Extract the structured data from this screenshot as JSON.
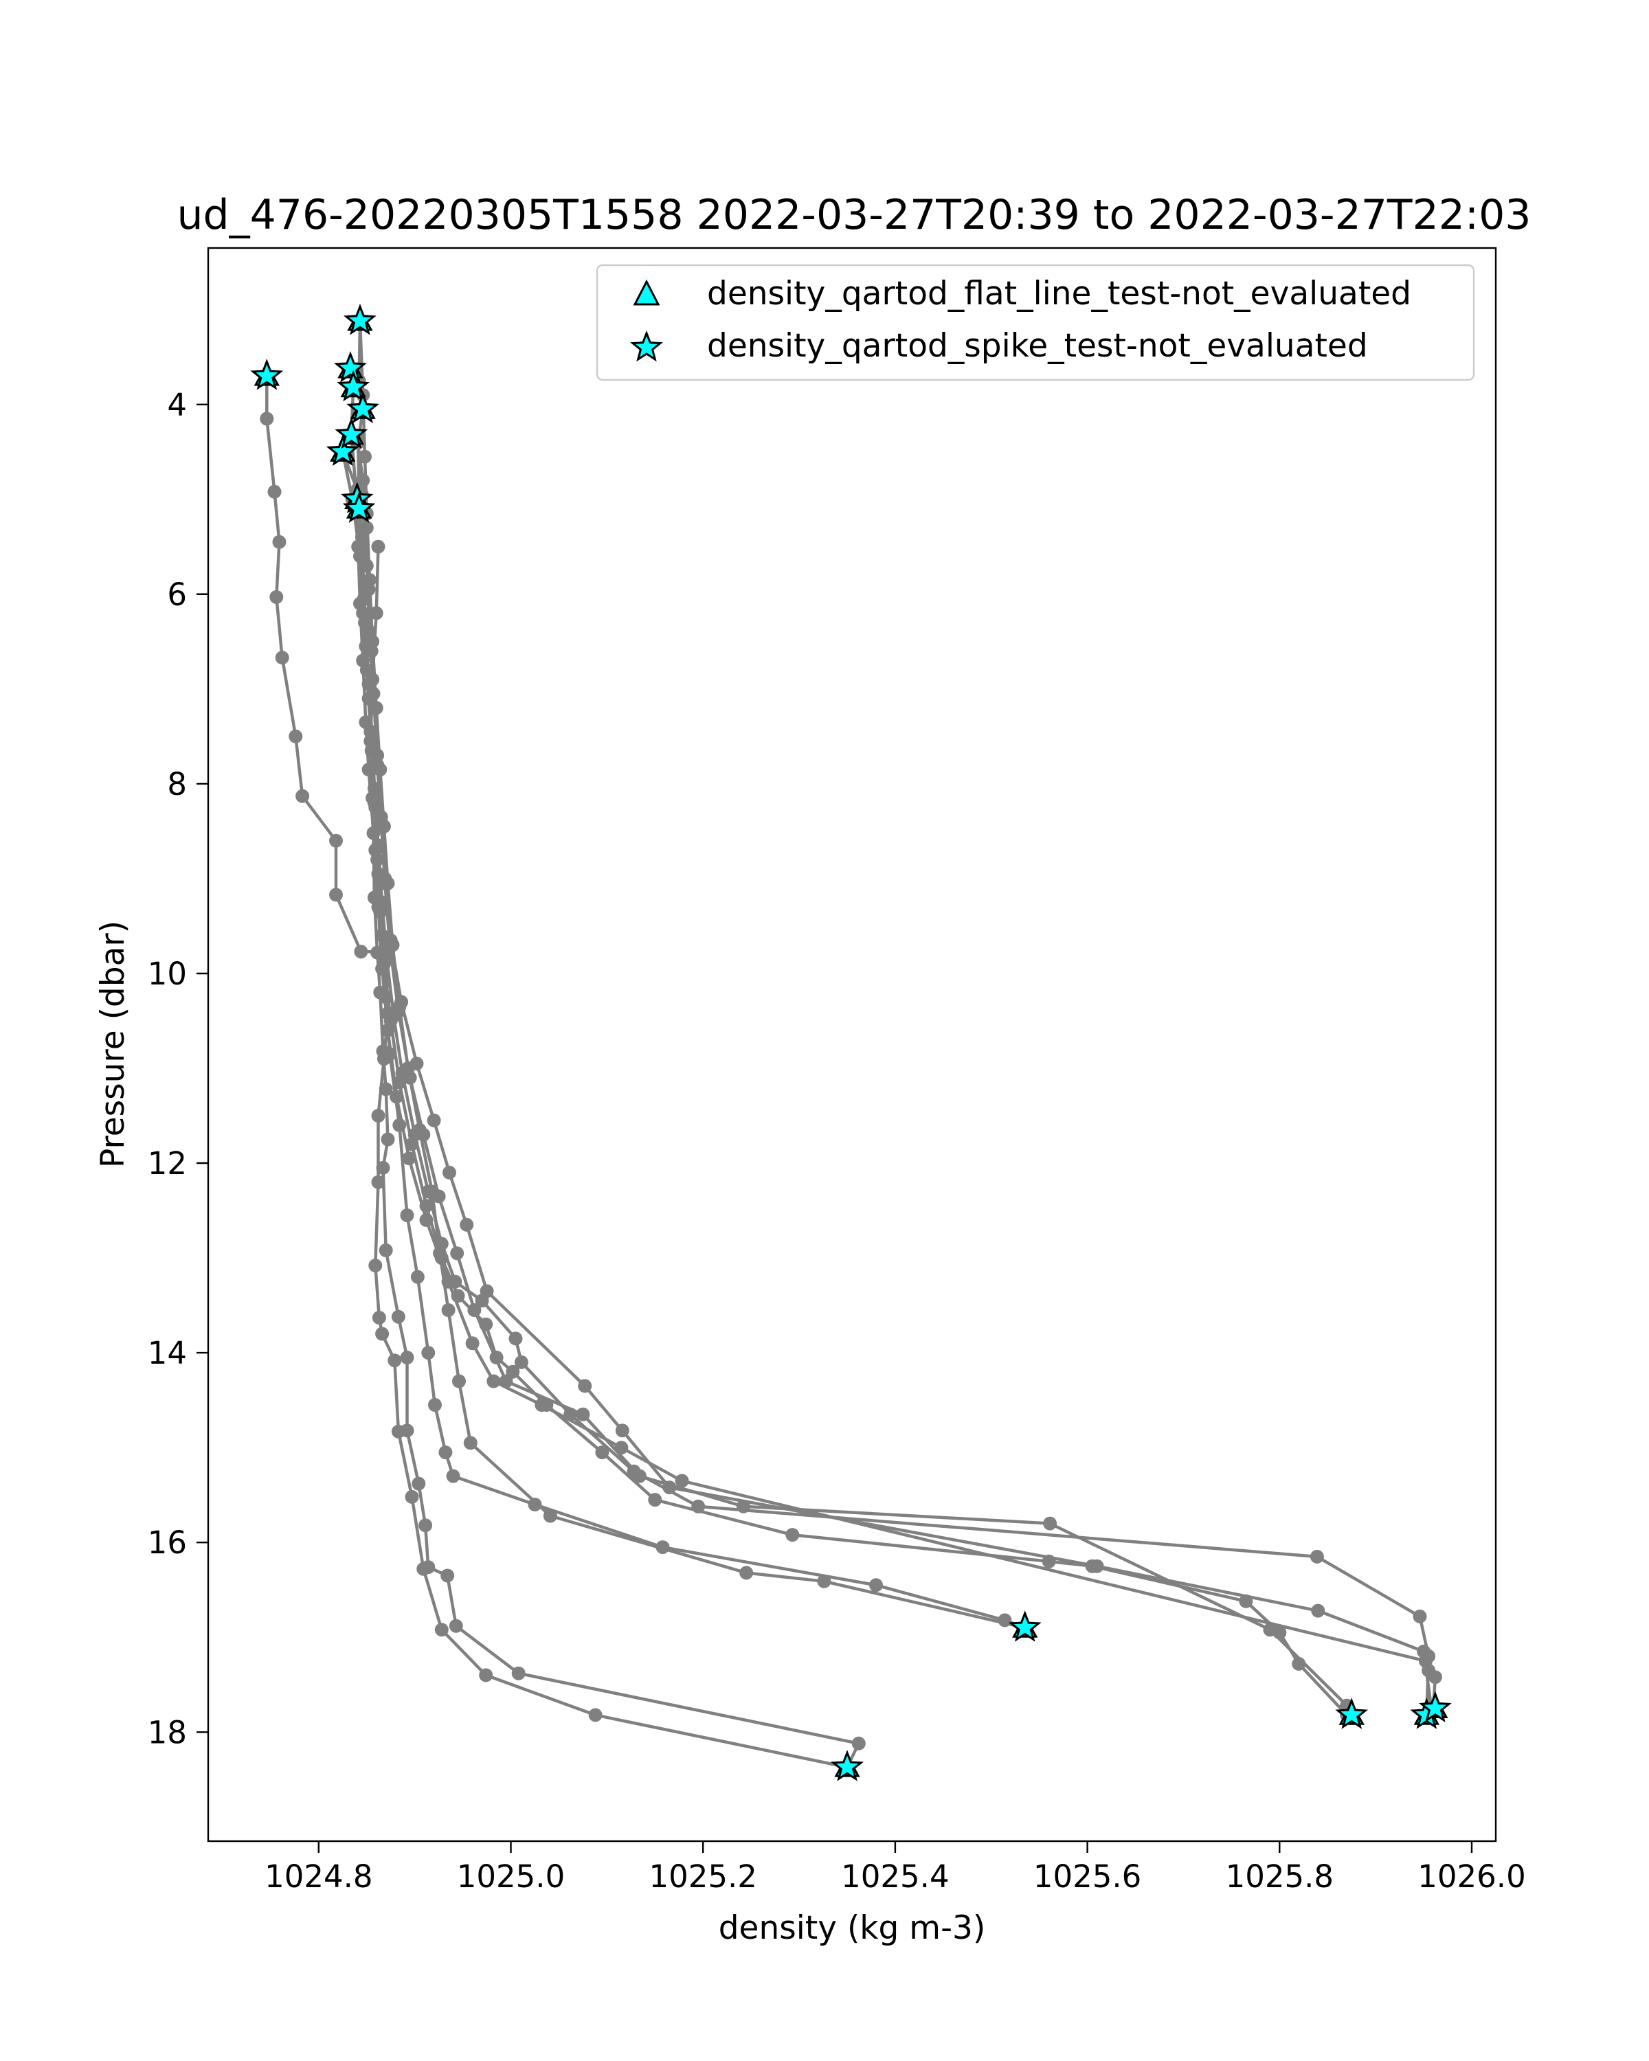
{
  "chart_data": {
    "type": "scatter",
    "title": "ud_476-20220305T1558 2022-03-27T20:39 to 2022-03-27T22:03",
    "xlabel": "density (kg m-3)",
    "ylabel": "Pressure (dbar)",
    "xlim": [
      1024.685,
      1026.025
    ],
    "ylim": [
      19.15,
      2.35
    ],
    "y_inverted": true,
    "x_ticks": [
      1024.8,
      1025.0,
      1025.2,
      1025.4,
      1025.6,
      1025.8,
      1026.0
    ],
    "x_tick_labels": [
      "1024.8",
      "1025.0",
      "1025.2",
      "1025.4",
      "1025.6",
      "1025.8",
      "1026.0"
    ],
    "y_ticks": [
      4,
      6,
      8,
      10,
      12,
      14,
      16,
      18
    ],
    "y_tick_labels": [
      "4",
      "6",
      "8",
      "10",
      "12",
      "14",
      "16",
      "18"
    ],
    "grid": false,
    "legend_position": "top-right",
    "colors": {
      "profile_line": "#808080",
      "flag_fill": "#00ffff",
      "flag_edge": "#000000"
    },
    "legend": [
      {
        "label": "density_qartod_flat_line_test-not_evaluated",
        "marker": "triangle"
      },
      {
        "label": "density_qartod_spike_test-not_evaluated",
        "marker": "star"
      }
    ],
    "series": [
      {
        "points": [
          [
            1024.746,
            3.7
          ],
          [
            1024.746,
            4.15
          ],
          [
            1024.754,
            4.92
          ],
          [
            1024.759,
            5.45
          ],
          [
            1024.756,
            6.03
          ],
          [
            1024.762,
            6.67
          ],
          [
            1024.776,
            7.5
          ],
          [
            1024.783,
            8.13
          ],
          [
            1024.818,
            8.6
          ],
          [
            1024.818,
            9.17
          ],
          [
            1024.844,
            9.77
          ],
          [
            1024.87,
            9.77
          ],
          [
            1024.872,
            10.42
          ],
          [
            1024.868,
            10.9
          ],
          [
            1024.862,
            11.5
          ],
          [
            1024.862,
            12.2
          ],
          [
            1024.859,
            13.08
          ],
          [
            1024.863,
            13.63
          ],
          [
            1024.866,
            13.8
          ],
          [
            1024.879,
            14.08
          ],
          [
            1024.883,
            14.83
          ],
          [
            1024.897,
            15.52
          ],
          [
            1024.909,
            16.28
          ],
          [
            1024.928,
            16.92
          ],
          [
            1024.974,
            17.4
          ],
          [
            1025.088,
            17.82
          ],
          [
            1025.35,
            18.37
          ]
        ]
      },
      {
        "points": [
          [
            1024.833,
            3.62
          ],
          [
            1024.836,
            3.82
          ],
          [
            1024.834,
            4.32
          ],
          [
            1024.84,
            5.05
          ],
          [
            1024.841,
            5.5
          ],
          [
            1024.843,
            6.1
          ],
          [
            1024.846,
            6.7
          ],
          [
            1024.849,
            7.35
          ],
          [
            1024.852,
            7.85
          ],
          [
            1024.857,
            8.52
          ],
          [
            1024.858,
            9.2
          ],
          [
            1024.861,
            9.78
          ],
          [
            1024.864,
            10.2
          ],
          [
            1024.867,
            10.82
          ],
          [
            1024.87,
            11.22
          ],
          [
            1024.872,
            11.75
          ],
          [
            1024.867,
            12.05
          ],
          [
            1024.87,
            12.92
          ],
          [
            1024.883,
            13.62
          ],
          [
            1024.892,
            14.05
          ],
          [
            1024.892,
            14.82
          ],
          [
            1024.904,
            15.38
          ],
          [
            1024.911,
            15.82
          ],
          [
            1024.914,
            16.26
          ],
          [
            1024.934,
            16.35
          ],
          [
            1024.943,
            16.88
          ],
          [
            1025.008,
            17.38
          ],
          [
            1025.362,
            18.12
          ],
          [
            1025.35,
            18.37
          ]
        ]
      },
      {
        "points": [
          [
            1024.843,
            3.12
          ],
          [
            1024.842,
            3.75
          ],
          [
            1024.846,
            4.05
          ],
          [
            1024.841,
            4.4
          ],
          [
            1024.842,
            5.05
          ],
          [
            1024.845,
            5.4
          ],
          [
            1024.848,
            6.3
          ],
          [
            1024.852,
            6.95
          ],
          [
            1024.856,
            7.55
          ],
          [
            1024.859,
            8.25
          ],
          [
            1024.862,
            8.95
          ],
          [
            1024.866,
            9.6
          ],
          [
            1024.87,
            10.25
          ],
          [
            1024.874,
            10.85
          ],
          [
            1024.884,
            11.6
          ],
          [
            1024.892,
            12.55
          ],
          [
            1024.903,
            13.2
          ],
          [
            1024.914,
            14.0
          ],
          [
            1024.921,
            14.55
          ],
          [
            1024.932,
            15.05
          ],
          [
            1024.94,
            15.3
          ],
          [
            1025.025,
            15.6
          ],
          [
            1025.158,
            16.05
          ],
          [
            1025.38,
            16.45
          ],
          [
            1025.514,
            16.82
          ],
          [
            1025.535,
            16.9
          ]
        ]
      },
      {
        "points": [
          [
            1024.843,
            3.12
          ],
          [
            1024.846,
            3.9
          ],
          [
            1024.848,
            4.55
          ],
          [
            1024.85,
            5.15
          ],
          [
            1024.853,
            5.85
          ],
          [
            1024.856,
            6.5
          ],
          [
            1024.86,
            7.2
          ],
          [
            1024.864,
            7.85
          ],
          [
            1024.868,
            8.45
          ],
          [
            1024.872,
            9.05
          ],
          [
            1024.877,
            9.7
          ],
          [
            1024.884,
            10.35
          ],
          [
            1024.893,
            11.0
          ],
          [
            1024.905,
            11.65
          ],
          [
            1024.918,
            12.3
          ],
          [
            1024.926,
            12.95
          ],
          [
            1024.935,
            13.55
          ],
          [
            1024.946,
            14.3
          ],
          [
            1024.958,
            14.95
          ],
          [
            1025.041,
            15.72
          ],
          [
            1025.245,
            16.32
          ],
          [
            1025.326,
            16.41
          ],
          [
            1025.535,
            16.9
          ]
        ]
      },
      {
        "points": [
          [
            1024.825,
            4.5
          ],
          [
            1024.84,
            4.9
          ],
          [
            1024.845,
            5.5
          ],
          [
            1024.847,
            6.05
          ],
          [
            1024.849,
            6.55
          ],
          [
            1024.852,
            7.1
          ],
          [
            1024.855,
            7.65
          ],
          [
            1024.858,
            8.2
          ],
          [
            1024.861,
            8.8
          ],
          [
            1024.864,
            9.35
          ],
          [
            1024.868,
            9.9
          ],
          [
            1024.875,
            10.5
          ],
          [
            1024.884,
            11.15
          ],
          [
            1024.897,
            11.8
          ],
          [
            1024.912,
            12.45
          ],
          [
            1024.928,
            13.0
          ],
          [
            1024.945,
            13.4
          ],
          [
            1024.974,
            13.7
          ],
          [
            1024.985,
            14.05
          ],
          [
            1025.002,
            14.2
          ],
          [
            1025.037,
            14.55
          ],
          [
            1025.095,
            15.05
          ],
          [
            1025.15,
            15.55
          ],
          [
            1025.293,
            15.92
          ],
          [
            1025.56,
            16.2
          ],
          [
            1025.605,
            16.25
          ],
          [
            1025.765,
            16.62
          ],
          [
            1025.8,
            16.95
          ],
          [
            1025.82,
            17.28
          ],
          [
            1025.87,
            17.82
          ],
          [
            1025.875,
            17.82
          ]
        ]
      },
      {
        "points": [
          [
            1024.825,
            4.5
          ],
          [
            1024.835,
            5.0
          ],
          [
            1024.843,
            5.6
          ],
          [
            1024.846,
            6.2
          ],
          [
            1024.85,
            6.8
          ],
          [
            1024.854,
            7.45
          ],
          [
            1024.858,
            8.05
          ],
          [
            1024.862,
            8.65
          ],
          [
            1024.866,
            9.25
          ],
          [
            1024.871,
            9.85
          ],
          [
            1024.878,
            10.45
          ],
          [
            1024.887,
            11.05
          ],
          [
            1024.9,
            11.7
          ],
          [
            1024.914,
            12.3
          ],
          [
            1024.928,
            12.85
          ],
          [
            1024.942,
            13.25
          ],
          [
            1024.97,
            13.45
          ],
          [
            1025.005,
            13.85
          ],
          [
            1025.011,
            14.1
          ],
          [
            1025.062,
            14.65
          ],
          [
            1025.128,
            15.25
          ],
          [
            1025.195,
            15.62
          ],
          [
            1025.839,
            16.15
          ],
          [
            1025.946,
            16.78
          ],
          [
            1025.955,
            17.2
          ],
          [
            1025.953,
            17.85
          ]
        ]
      },
      {
        "points": [
          [
            1024.84,
            4.35
          ],
          [
            1024.846,
            4.8
          ],
          [
            1024.85,
            5.3
          ],
          [
            1024.852,
            5.95
          ],
          [
            1024.855,
            6.6
          ],
          [
            1024.858,
            7.2
          ],
          [
            1024.861,
            7.8
          ],
          [
            1024.865,
            8.4
          ],
          [
            1024.869,
            9.05
          ],
          [
            1024.874,
            9.7
          ],
          [
            1024.883,
            10.4
          ],
          [
            1024.895,
            11.1
          ],
          [
            1024.909,
            11.7
          ],
          [
            1024.925,
            12.35
          ],
          [
            1024.944,
            12.95
          ],
          [
            1024.962,
            13.55
          ],
          [
            1024.995,
            14.3
          ],
          [
            1025.075,
            14.65
          ],
          [
            1025.134,
            15.3
          ],
          [
            1025.242,
            15.62
          ],
          [
            1025.561,
            15.8
          ],
          [
            1025.79,
            16.92
          ],
          [
            1025.87,
            17.72
          ],
          [
            1025.875,
            17.82
          ]
        ]
      },
      {
        "points": [
          [
            1024.84,
            4.35
          ],
          [
            1024.845,
            4.95
          ],
          [
            1024.85,
            5.7
          ],
          [
            1024.853,
            6.4
          ],
          [
            1024.857,
            7.05
          ],
          [
            1024.861,
            7.7
          ],
          [
            1024.865,
            8.35
          ],
          [
            1024.869,
            9.0
          ],
          [
            1024.875,
            9.65
          ],
          [
            1024.886,
            10.3
          ],
          [
            1024.902,
            10.95
          ],
          [
            1024.92,
            11.55
          ],
          [
            1024.936,
            12.1
          ],
          [
            1024.954,
            12.65
          ],
          [
            1024.975,
            13.35
          ],
          [
            1025.077,
            14.35
          ],
          [
            1025.116,
            14.82
          ],
          [
            1025.165,
            15.42
          ],
          [
            1025.61,
            16.25
          ],
          [
            1025.84,
            16.72
          ],
          [
            1025.95,
            17.15
          ],
          [
            1025.958,
            17.75
          ],
          [
            1025.96,
            17.75
          ]
        ]
      },
      {
        "points": [
          [
            1024.862,
            5.5
          ],
          [
            1024.86,
            6.2
          ],
          [
            1024.856,
            6.9
          ],
          [
            1024.854,
            7.55
          ],
          [
            1024.856,
            8.15
          ],
          [
            1024.859,
            8.7
          ],
          [
            1024.862,
            9.3
          ],
          [
            1024.866,
            9.95
          ],
          [
            1024.872,
            10.6
          ],
          [
            1024.881,
            11.3
          ],
          [
            1024.894,
            11.95
          ],
          [
            1024.912,
            12.6
          ],
          [
            1024.935,
            13.25
          ],
          [
            1024.96,
            13.9
          ],
          [
            1024.982,
            14.3
          ],
          [
            1025.032,
            14.55
          ],
          [
            1025.115,
            15.0
          ],
          [
            1025.178,
            15.35
          ],
          [
            1025.952,
            17.25
          ],
          [
            1025.955,
            17.35
          ],
          [
            1025.962,
            17.42
          ],
          [
            1025.96,
            17.75
          ]
        ]
      }
    ],
    "flag_markers": {
      "spike_test": [
        [
          1024.746,
          3.7
        ],
        [
          1024.833,
          3.62
        ],
        [
          1024.836,
          3.82
        ],
        [
          1024.843,
          3.12
        ],
        [
          1024.846,
          4.05
        ],
        [
          1024.825,
          4.5
        ],
        [
          1024.834,
          4.32
        ],
        [
          1024.84,
          5.0
        ],
        [
          1024.842,
          5.1
        ],
        [
          1025.535,
          16.9
        ],
        [
          1025.35,
          18.37
        ],
        [
          1025.875,
          17.82
        ],
        [
          1025.953,
          17.82
        ],
        [
          1025.962,
          17.75
        ]
      ],
      "flat_line_test": [
        [
          1024.746,
          3.7
        ],
        [
          1024.833,
          3.62
        ],
        [
          1024.836,
          3.82
        ],
        [
          1024.843,
          3.12
        ],
        [
          1024.846,
          4.05
        ],
        [
          1024.825,
          4.5
        ],
        [
          1024.834,
          4.32
        ],
        [
          1024.84,
          5.0
        ],
        [
          1024.842,
          5.1
        ],
        [
          1025.535,
          16.9
        ],
        [
          1025.35,
          18.37
        ],
        [
          1025.875,
          17.82
        ],
        [
          1025.953,
          17.82
        ],
        [
          1025.962,
          17.75
        ]
      ]
    }
  }
}
